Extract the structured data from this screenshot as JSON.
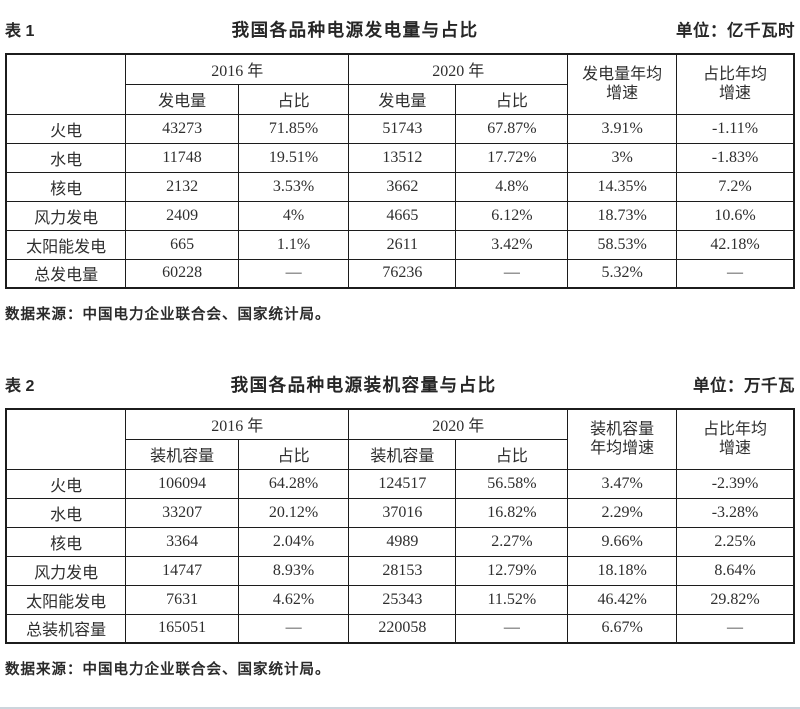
{
  "page": {
    "background": "#ffffff",
    "text_color": "#2e2e2e",
    "border_color": "#1c1c1c"
  },
  "tables": [
    {
      "tag": "表 1",
      "title": "我国各品种电源发电量与占比",
      "unit": "单位：亿千瓦时",
      "col_groups": [
        "2016 年",
        "2020 年"
      ],
      "sub_headers": [
        "发电量",
        "占比",
        "发电量",
        "占比"
      ],
      "avg_headers": [
        {
          "line1": "发电量年均",
          "line2": "增速"
        },
        {
          "line1": "占比年均",
          "line2": "增速"
        }
      ],
      "rows": [
        {
          "label": "火电",
          "values": [
            "43273",
            "71.85%",
            "51743",
            "67.87%",
            "3.91%",
            "-1.11%"
          ]
        },
        {
          "label": "水电",
          "values": [
            "11748",
            "19.51%",
            "13512",
            "17.72%",
            "3%",
            "-1.83%"
          ]
        },
        {
          "label": "核电",
          "values": [
            "2132",
            "3.53%",
            "3662",
            "4.8%",
            "14.35%",
            "7.2%"
          ]
        },
        {
          "label": "风力发电",
          "values": [
            "2409",
            "4%",
            "4665",
            "6.12%",
            "18.73%",
            "10.6%"
          ]
        },
        {
          "label": "太阳能发电",
          "values": [
            "665",
            "1.1%",
            "2611",
            "3.42%",
            "58.53%",
            "42.18%"
          ]
        },
        {
          "label": "总发电量",
          "values": [
            "60228",
            "—",
            "76236",
            "—",
            "5.32%",
            "—"
          ]
        }
      ],
      "source": "数据来源：中国电力企业联合会、国家统计局。"
    },
    {
      "tag": "表 2",
      "title": "我国各品种电源装机容量与占比",
      "unit": "单位：万千瓦",
      "col_groups": [
        "2016 年",
        "2020 年"
      ],
      "sub_headers": [
        "装机容量",
        "占比",
        "装机容量",
        "占比"
      ],
      "avg_headers": [
        {
          "line1": "装机容量",
          "line2": "年均增速"
        },
        {
          "line1": "占比年均",
          "line2": "增速"
        }
      ],
      "rows": [
        {
          "label": "火电",
          "values": [
            "106094",
            "64.28%",
            "124517",
            "56.58%",
            "3.47%",
            "-2.39%"
          ]
        },
        {
          "label": "水电",
          "values": [
            "33207",
            "20.12%",
            "37016",
            "16.82%",
            "2.29%",
            "-3.28%"
          ]
        },
        {
          "label": "核电",
          "values": [
            "3364",
            "2.04%",
            "4989",
            "2.27%",
            "9.66%",
            "2.25%"
          ]
        },
        {
          "label": "风力发电",
          "values": [
            "14747",
            "8.93%",
            "28153",
            "12.79%",
            "18.18%",
            "8.64%"
          ]
        },
        {
          "label": "太阳能发电",
          "values": [
            "7631",
            "4.62%",
            "25343",
            "11.52%",
            "46.42%",
            "29.82%"
          ]
        },
        {
          "label": "总装机容量",
          "values": [
            "165051",
            "—",
            "220058",
            "—",
            "6.67%",
            "—"
          ]
        }
      ],
      "source": "数据来源：中国电力企业联合会、国家统计局。"
    }
  ]
}
